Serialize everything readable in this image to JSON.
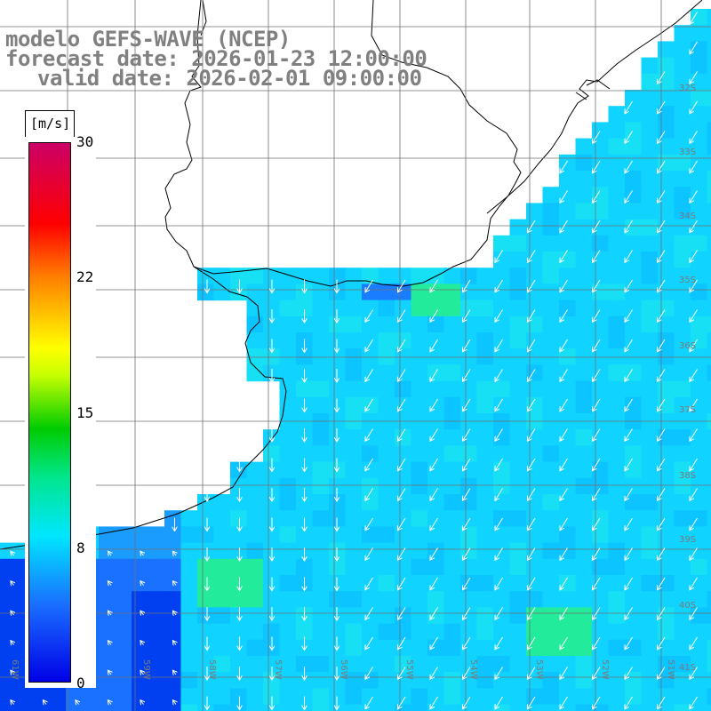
{
  "title": {
    "model": "modelo GEFS-WAVE (NCEP)",
    "forecast": "forecast date: 2026-01-23 12:00:00",
    "valid": "valid date: 2026-02-01 09:00:00"
  },
  "colorbar": {
    "unit": "[m/s]",
    "ticks": [
      "30",
      "22",
      "15",
      "8",
      "0"
    ],
    "range": [
      0,
      30
    ],
    "colors": [
      "#0000e6",
      "#1a8cff",
      "#00e6ff",
      "#00e68c",
      "#00cc00",
      "#ffff00",
      "#ff8000",
      "#ff0000",
      "#cc0066"
    ]
  },
  "map": {
    "lat_labels": [
      "32S",
      "33S",
      "34S",
      "35S",
      "36S",
      "37S",
      "38S",
      "39S",
      "40S",
      "41S"
    ],
    "lon_labels": [
      "61W",
      "60W",
      "59W",
      "58W",
      "57W",
      "56W",
      "55W",
      "54W",
      "53W",
      "52W",
      "51W"
    ],
    "ocean_color": "#10d0ff",
    "land_color": "#ffffff"
  }
}
